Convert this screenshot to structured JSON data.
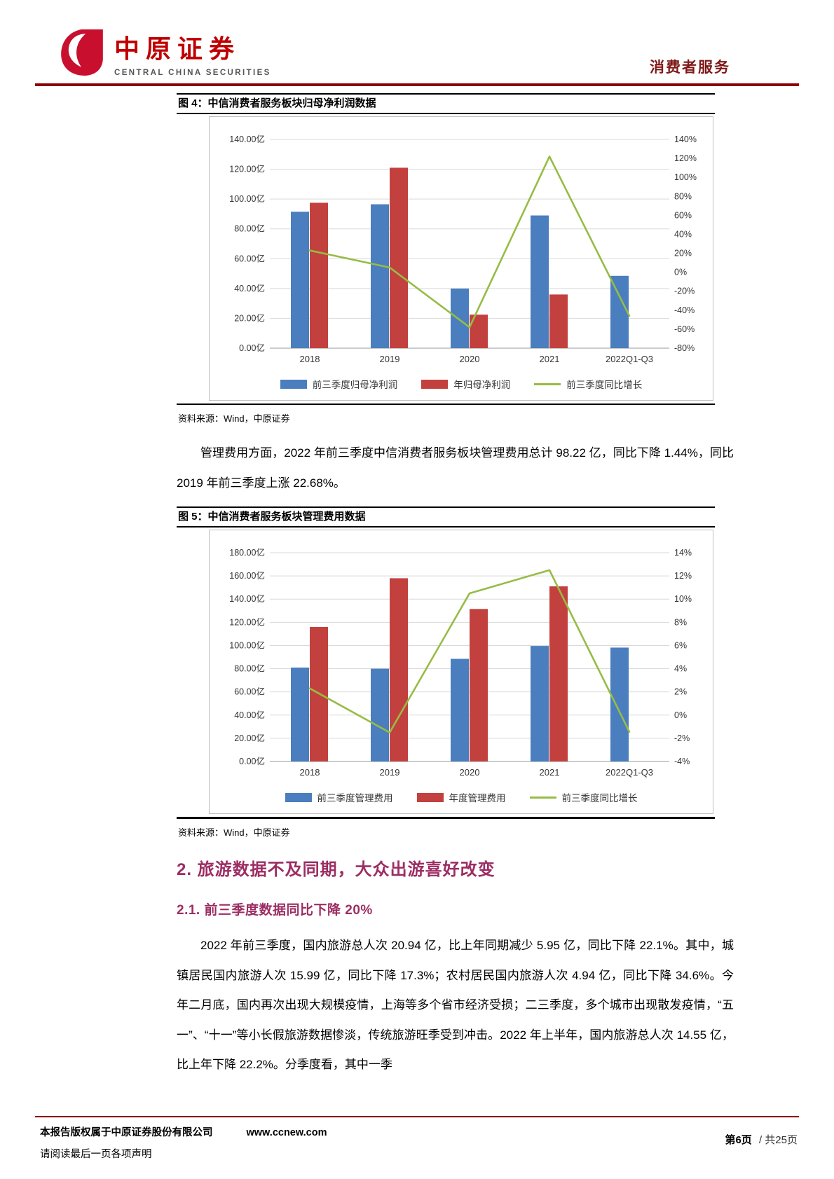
{
  "brand": {
    "name_cn": "中原证券",
    "name_en": "CENTRAL CHINA SECURITIES"
  },
  "header": {
    "category": "消费者服务"
  },
  "colors": {
    "rule_red": "#8B0000",
    "heading_accent": "#9C2D63",
    "bar_blue": "#4A7EBE",
    "bar_red": "#C2413E",
    "line_green": "#97BC44"
  },
  "figure4": {
    "title": "图 4：中信消费者服务板块归母净利润数据",
    "source": "资料来源：Wind，中原证券"
  },
  "figure5": {
    "title": "图 5：中信消费者服务板块管理费用数据",
    "source": "资料来源：Wind，中原证券"
  },
  "paragraph1": "管理费用方面，2022 年前三季度中信消费者服务板块管理费用总计 98.22 亿，同比下降 1.44%，同比 2019 年前三季度上涨 22.68%。",
  "section2": {
    "heading": "2. 旅游数据不及同期，大众出游喜好改变",
    "sub_heading": "2.1. 前三季度数据同比下降 20%",
    "paragraph": "2022 年前三季度，国内旅游总人次 20.94 亿，比上年同期减少 5.95 亿，同比下降 22.1%。其中，城镇居民国内旅游人次 15.99 亿，同比下降 17.3%；农村居民国内旅游人次 4.94 亿，同比下降 34.6%。今年二月底，国内再次出现大规模疫情，上海等多个省市经济受损；二三季度，多个城市出现散发疫情，“五一”、“十一”等小长假旅游数据惨淡，传统旅游旺季受到冲击。2022 年上半年，国内旅游总人次 14.55 亿，比上年下降 22.2%。分季度看，其中一季"
  },
  "footer": {
    "copyright": "本报告版权属于中原证券股份有限公司",
    "url": "www.ccnew.com",
    "disclaimer": "请阅读最后一页各项声明",
    "page_current": "第6页",
    "page_total": "/ 共25页"
  },
  "chart_data": [
    {
      "id": "fig4",
      "type": "bar",
      "title": "中信消费者服务板块归母净利润数据",
      "categories": [
        "2018",
        "2019",
        "2020",
        "2021",
        "2022Q1-Q3"
      ],
      "series": [
        {
          "name": "前三季度归母净利润",
          "type": "bar",
          "axis": "left",
          "color": "#4A7EBE",
          "values": [
            91.5,
            96.5,
            40.0,
            89.0,
            48.5
          ]
        },
        {
          "name": "年归母净利润",
          "type": "bar",
          "axis": "left",
          "color": "#C2413E",
          "values": [
            97.5,
            121.0,
            22.5,
            36.0,
            null
          ]
        },
        {
          "name": "前三季度同比增长",
          "type": "line",
          "axis": "right",
          "unit": "%",
          "color": "#97BC44",
          "values": [
            23,
            5,
            -58,
            122,
            -46
          ]
        }
      ],
      "left_axis": {
        "min": 0,
        "max": 140,
        "step": 20,
        "unit": "亿",
        "labels": [
          "0.00亿",
          "20.00亿",
          "40.00亿",
          "60.00亿",
          "80.00亿",
          "100.00亿",
          "120.00亿",
          "140.00亿"
        ]
      },
      "right_axis": {
        "min": -80,
        "max": 140,
        "step": 20,
        "unit": "%",
        "labels": [
          "-80%",
          "-60%",
          "-40%",
          "-20%",
          "0%",
          "20%",
          "40%",
          "60%",
          "80%",
          "100%",
          "120%",
          "140%"
        ]
      },
      "grid": true,
      "legend_position": "bottom"
    },
    {
      "id": "fig5",
      "type": "bar",
      "title": "中信消费者服务板块管理费用数据",
      "categories": [
        "2018",
        "2019",
        "2020",
        "2021",
        "2022Q1-Q3"
      ],
      "series": [
        {
          "name": "前三季度管理费用",
          "type": "bar",
          "axis": "left",
          "color": "#4A7EBE",
          "values": [
            81.0,
            80.0,
            88.5,
            99.6,
            98.2
          ]
        },
        {
          "name": "年度管理费用",
          "type": "bar",
          "axis": "left",
          "color": "#C2413E",
          "values": [
            116.0,
            158.0,
            131.5,
            151.0,
            null
          ]
        },
        {
          "name": "前三季度同比增长",
          "type": "line",
          "axis": "right",
          "unit": "%",
          "color": "#97BC44",
          "values": [
            2.3,
            -1.5,
            10.5,
            12.5,
            -1.44
          ]
        }
      ],
      "left_axis": {
        "min": 0,
        "max": 180,
        "step": 20,
        "unit": "亿",
        "labels": [
          "0.00亿",
          "20.00亿",
          "40.00亿",
          "60.00亿",
          "80.00亿",
          "100.00亿",
          "120.00亿",
          "140.00亿",
          "160.00亿",
          "180.00亿"
        ]
      },
      "right_axis": {
        "min": -4,
        "max": 14,
        "step": 2,
        "unit": "%",
        "labels": [
          "-4%",
          "-2%",
          "0%",
          "2%",
          "4%",
          "6%",
          "8%",
          "10%",
          "12%",
          "14%"
        ]
      },
      "grid": true,
      "legend_position": "bottom"
    }
  ]
}
